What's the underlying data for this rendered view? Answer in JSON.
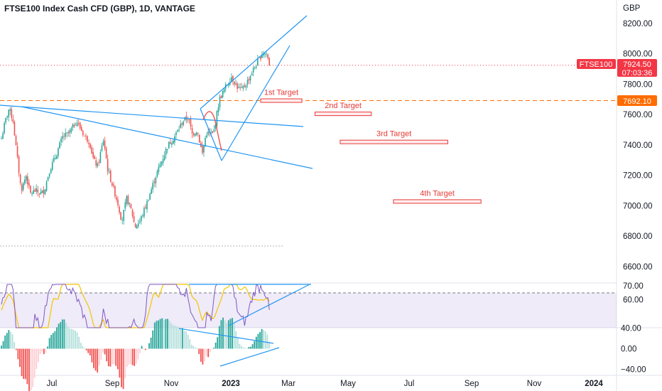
{
  "header": {
    "title": "FTSE100 Index Cash CFD (GBP), 1D, VANTAGE"
  },
  "currency": "GBP",
  "price_badge": {
    "symbol": "FTSE100",
    "price": "7924.50",
    "countdown": "07:03:36",
    "color": "#f23645"
  },
  "level_badge": {
    "value": "7692.10",
    "color": "#ff6d00"
  },
  "colors": {
    "up": "#26a69a",
    "down": "#ef5350",
    "trendline": "#2196f3",
    "rsi": "#7e57c2",
    "rsi_ma": "#f5c400",
    "target": "#e53935",
    "level": "#ff6d00"
  },
  "chart_data": [
    {
      "type": "candlestick",
      "title": "FTSE100 Index Cash CFD (GBP), 1D, VANTAGE",
      "x_tick_labels": [
        "Jul",
        "Sep",
        "Nov",
        "2023",
        "Mar",
        "May",
        "Jul",
        "Sep",
        "Nov",
        "2024"
      ],
      "y_tick_labels": [
        "8200.00",
        "8000.00",
        "7800.00",
        "7600.00",
        "7400.00",
        "7200.00",
        "7000.00",
        "6800.00",
        "6600.00"
      ],
      "ylim": [
        6520,
        8270
      ],
      "close_path": [
        [
          "2022-06-01",
          7400
        ],
        [
          "2022-06-06",
          7550
        ],
        [
          "2022-06-10",
          7640
        ],
        [
          "2022-06-14",
          7560
        ],
        [
          "2022-06-17",
          7380
        ],
        [
          "2022-06-22",
          7100
        ],
        [
          "2022-06-27",
          7200
        ],
        [
          "2022-07-01",
          7080
        ],
        [
          "2022-07-06",
          7100
        ],
        [
          "2022-07-11",
          7080
        ],
        [
          "2022-07-15",
          7100
        ],
        [
          "2022-07-20",
          7230
        ],
        [
          "2022-07-26",
          7320
        ],
        [
          "2022-08-02",
          7450
        ],
        [
          "2022-08-09",
          7480
        ],
        [
          "2022-08-16",
          7560
        ],
        [
          "2022-08-19",
          7520
        ],
        [
          "2022-08-24",
          7460
        ],
        [
          "2022-08-29",
          7420
        ],
        [
          "2022-09-02",
          7300
        ],
        [
          "2022-09-06",
          7260
        ],
        [
          "2022-09-12",
          7440
        ],
        [
          "2022-09-16",
          7240
        ],
        [
          "2022-09-21",
          7130
        ],
        [
          "2022-09-26",
          7020
        ],
        [
          "2022-09-30",
          6900
        ],
        [
          "2022-10-05",
          7050
        ],
        [
          "2022-10-10",
          6960
        ],
        [
          "2022-10-13",
          6860
        ],
        [
          "2022-10-18",
          6900
        ],
        [
          "2022-10-24",
          7000
        ],
        [
          "2022-10-28",
          7080
        ],
        [
          "2022-11-03",
          7200
        ],
        [
          "2022-11-09",
          7300
        ],
        [
          "2022-11-15",
          7400
        ],
        [
          "2022-11-21",
          7450
        ],
        [
          "2022-11-25",
          7500
        ],
        [
          "2022-11-30",
          7560
        ],
        [
          "2022-12-05",
          7580
        ],
        [
          "2022-12-09",
          7470
        ],
        [
          "2022-12-14",
          7500
        ],
        [
          "2022-12-19",
          7340
        ],
        [
          "2022-12-23",
          7480
        ],
        [
          "2022-12-30",
          7470
        ],
        [
          "2023-01-05",
          7700
        ],
        [
          "2023-01-11",
          7780
        ],
        [
          "2023-01-17",
          7850
        ],
        [
          "2023-01-23",
          7780
        ],
        [
          "2023-01-27",
          7760
        ],
        [
          "2023-02-02",
          7820
        ],
        [
          "2023-02-08",
          7900
        ],
        [
          "2023-02-14",
          7970
        ],
        [
          "2023-02-17",
          8010
        ],
        [
          "2023-02-21",
          8000
        ],
        [
          "2023-02-24",
          7924
        ]
      ],
      "horizontal_level": 7692.1,
      "last_price": 7924.5,
      "target_labels": [
        "1st Target",
        "2nd Target",
        "3rd Target",
        "4th Target"
      ],
      "target_boxes": [
        {
          "label": "1st Target",
          "y": 7692,
          "x_start": "2023-02-15",
          "x_end": "2023-03-28"
        },
        {
          "label": "2nd Target",
          "y": 7605,
          "x_start": "2023-04-10",
          "x_end": "2023-06-05"
        },
        {
          "label": "3rd Target",
          "y": 7420,
          "x_start": "2023-05-05",
          "x_end": "2023-08-20"
        },
        {
          "label": "4th Target",
          "y": 7028,
          "x_start": "2023-06-27",
          "x_end": "2023-09-22"
        }
      ]
    },
    {
      "type": "line",
      "panel": "RSI",
      "y_tick_labels": [
        "70.00",
        "60.00"
      ],
      "ylim": [
        40,
        72
      ],
      "upper_band": 70
    },
    {
      "type": "histogram",
      "panel": "MACD histogram",
      "y_tick_labels": [
        "40.00",
        "0.00",
        "−40.00"
      ],
      "ylim": [
        -55,
        50
      ]
    }
  ]
}
